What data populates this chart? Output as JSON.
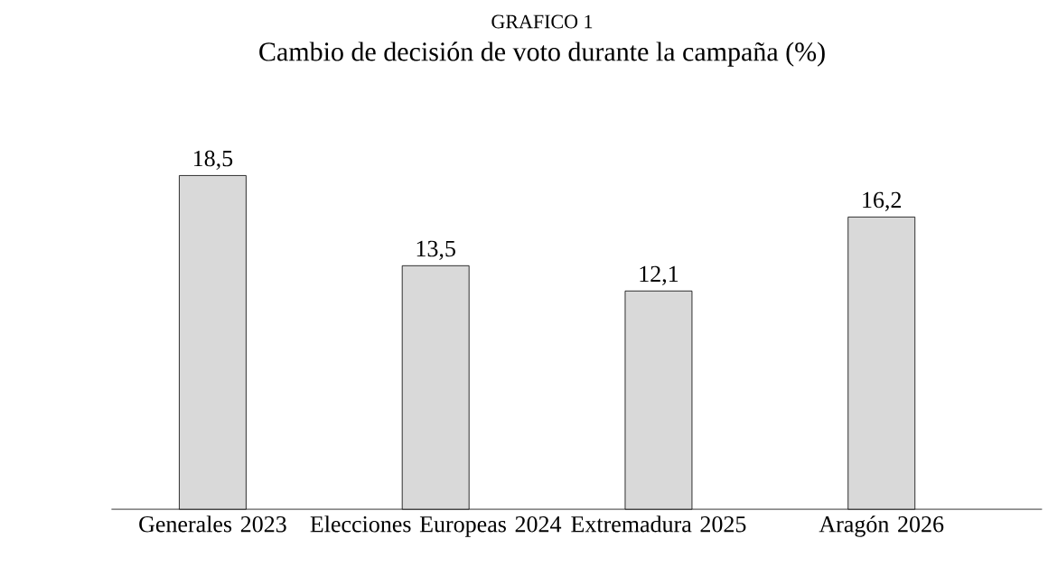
{
  "chart_data": {
    "type": "bar",
    "title": "GRAFICO 1",
    "subtitle": "Cambio de decisión de voto durante la campaña (%)",
    "categories": [
      "Generales 2023",
      "Elecciones Europeas 2024",
      "Extremadura 2025",
      "Aragón 2026"
    ],
    "values": [
      18.5,
      13.5,
      12.1,
      16.2
    ],
    "value_labels": [
      "18,5",
      "13,5",
      "12,1",
      "16,2"
    ],
    "color": "#d9d9d9"
  }
}
